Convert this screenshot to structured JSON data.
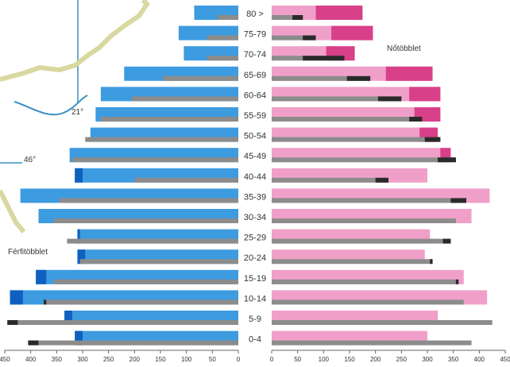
{
  "chart_data": {
    "type": "bar",
    "categories": [
      "0-4",
      "5-9",
      "10-14",
      "15-19",
      "20-24",
      "25-29",
      "30-34",
      "35-39",
      "40-44",
      "45-49",
      "50-54",
      "55-59",
      "60-64",
      "65-69",
      "70-74",
      "75-79",
      "80 >"
    ],
    "category_labels": [
      "0-4",
      "5-9",
      "10-14",
      "15-19",
      "20-24",
      "25-29",
      "30-34",
      "35-39",
      "40-44",
      "45-49",
      "50-54",
      "55-59",
      "60-64",
      "65-69",
      "70-74",
      "75-79",
      "80 >"
    ],
    "xlim": [
      0,
      450
    ],
    "xticks": [
      0,
      50,
      100,
      150,
      200,
      250,
      300,
      350,
      400,
      450
    ],
    "left_panel": {
      "primary": [
        315,
        335,
        440,
        390,
        310,
        310,
        385,
        420,
        315,
        325,
        285,
        275,
        265,
        220,
        105,
        115,
        85
      ],
      "secondary": [
        405,
        445,
        375,
        355,
        305,
        330,
        355,
        345,
        200,
        320,
        295,
        265,
        205,
        145,
        60,
        60,
        40
      ]
    },
    "right_panel": {
      "primary": [
        300,
        320,
        415,
        370,
        295,
        305,
        385,
        420,
        300,
        345,
        320,
        325,
        325,
        310,
        160,
        195,
        175
      ],
      "secondary": [
        385,
        425,
        370,
        360,
        310,
        345,
        355,
        375,
        225,
        355,
        325,
        290,
        250,
        190,
        140,
        85,
        60
      ]
    },
    "annotations": [
      "Férfitöbblet",
      "Nőtöbblet"
    ],
    "colors": {
      "male": "#3d9be0",
      "male_excess": "#1060c0",
      "female": "#f0a0c8",
      "female_excess": "#d8408a",
      "secondary": "#8c8c8c",
      "secondary_excess": "#2a2a2a"
    }
  },
  "map_labels": [
    "21°",
    "46°"
  ],
  "map_colors": {
    "road": "#3a8fc0",
    "border": "#d8d8a0"
  }
}
